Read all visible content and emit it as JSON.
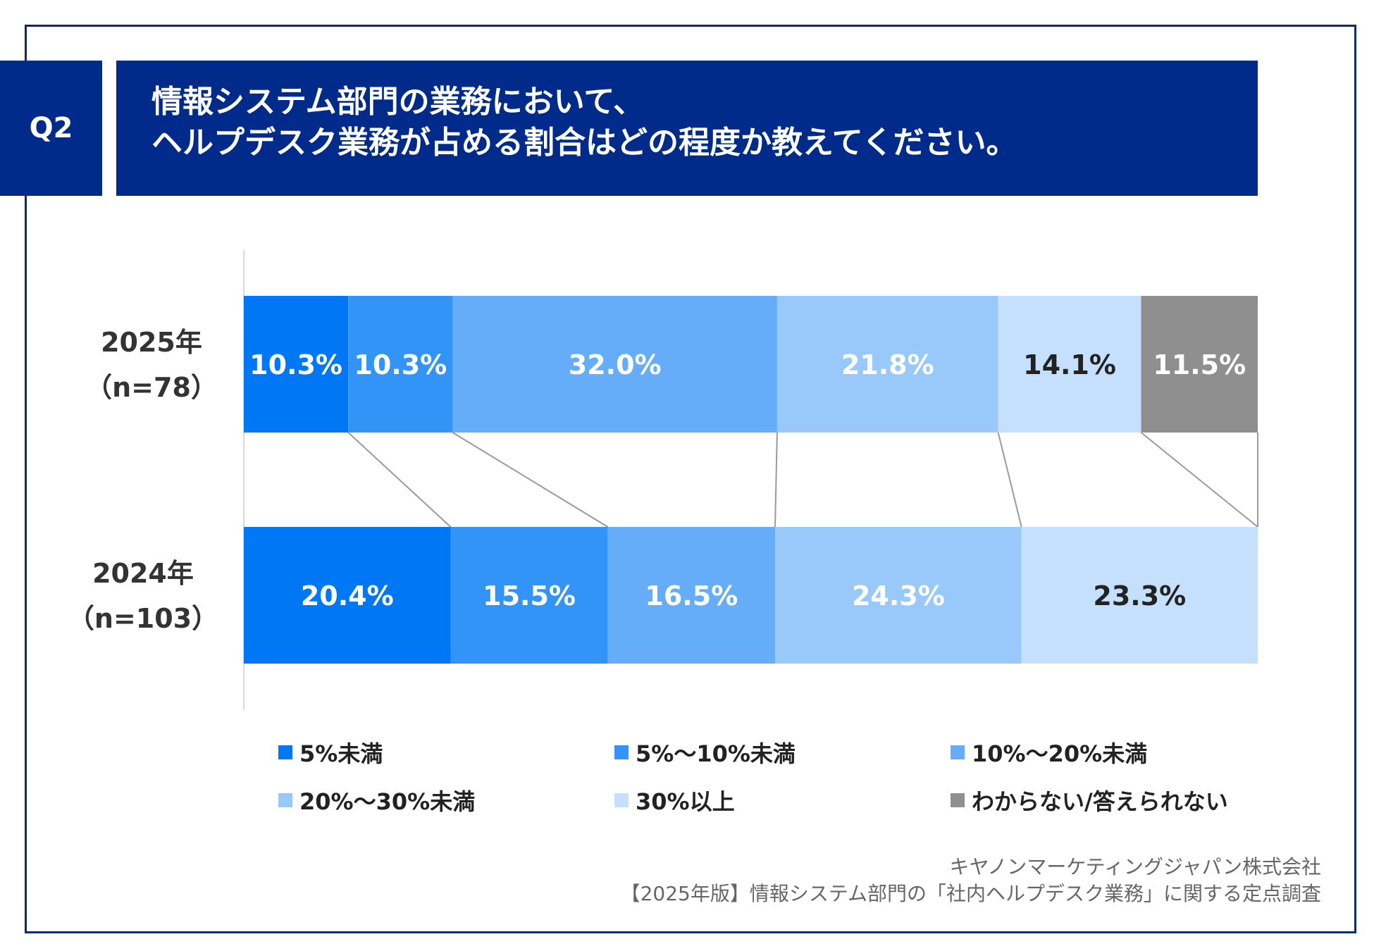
{
  "header": {
    "badge": "Q2",
    "title_line1": "情報システム部門の業務において、",
    "title_line2": "ヘルプデスク業務が占める割合はどの程度か教えてください。"
  },
  "chart_data": {
    "type": "bar",
    "orientation": "horizontal",
    "stacked": true,
    "percent_stacked": true,
    "categories": [
      "2025年\n（n=78）",
      "2024年\n（n=103）"
    ],
    "category_labels": [
      {
        "year": "2025年",
        "n": "（n=78）"
      },
      {
        "year": "2024年",
        "n": "（n=103）"
      }
    ],
    "series": [
      {
        "name": "5%未満",
        "color": "#0078f5",
        "values": [
          10.3,
          20.4
        ],
        "labels": [
          "10.3%",
          "20.4%"
        ],
        "label_color": "#ffffff"
      },
      {
        "name": "5%～10%未満",
        "color": "#3394f7",
        "values": [
          10.3,
          15.5
        ],
        "labels": [
          "10.3%",
          "15.5%"
        ],
        "label_color": "#ffffff"
      },
      {
        "name": "10%～20%未満",
        "color": "#66adf9",
        "values": [
          32.0,
          16.5
        ],
        "labels": [
          "32.0%",
          "16.5%"
        ],
        "label_color": "#ffffff"
      },
      {
        "name": "20%～30%未満",
        "color": "#99c9fb",
        "values": [
          21.8,
          24.3
        ],
        "labels": [
          "21.8%",
          "24.3%"
        ],
        "label_color": "#ffffff"
      },
      {
        "name": "30%以上",
        "color": "#c5e0fd",
        "values": [
          14.1,
          23.3
        ],
        "labels": [
          "14.1%",
          "23.3%"
        ],
        "label_color": "#222222"
      },
      {
        "name": "わからない/答えられない",
        "color": "#8f8f8f",
        "values": [
          11.5,
          0
        ],
        "labels": [
          "11.5%",
          ""
        ],
        "label_color": "#ffffff"
      }
    ],
    "xlim": [
      0,
      100
    ],
    "series_connector_lines": true,
    "legend_position": "bottom"
  },
  "source": {
    "line1": "キヤノンマーケティングジャパン株式会社",
    "line2": "【2025年版】情報システム部門の「社内ヘルプデスク業務」に関する定点調査"
  }
}
